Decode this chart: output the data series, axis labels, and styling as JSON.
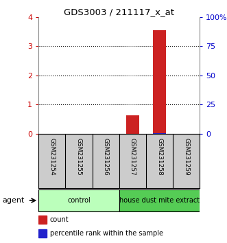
{
  "title": "GDS3003 / 211117_x_at",
  "samples": [
    "GSM231254",
    "GSM231255",
    "GSM231256",
    "GSM231257",
    "GSM231258",
    "GSM231259"
  ],
  "count_values": [
    0,
    0,
    0,
    0.62,
    3.55,
    0
  ],
  "percentile_values": [
    0,
    0,
    0,
    0.08,
    0.38,
    0
  ],
  "left_ylim": [
    0,
    4
  ],
  "right_ylim": [
    0,
    100
  ],
  "left_yticks": [
    0,
    1,
    2,
    3,
    4
  ],
  "right_yticks": [
    0,
    25,
    50,
    75,
    100
  ],
  "right_yticklabels": [
    "0",
    "25",
    "50",
    "75",
    "100%"
  ],
  "left_ycolor": "#cc0000",
  "right_ycolor": "#0000cc",
  "groups": [
    {
      "label": "control",
      "start": 0,
      "end": 2,
      "color": "#bbffbb"
    },
    {
      "label": "house dust mite extract",
      "start": 3,
      "end": 5,
      "color": "#55cc55"
    }
  ],
  "agent_label": "agent",
  "bar_width": 0.5,
  "count_color": "#cc2222",
  "percentile_color": "#2222cc",
  "bg_color": "#ffffff",
  "sample_bg_color": "#cccccc",
  "legend_count_label": "count",
  "legend_percentile_label": "percentile rank within the sample",
  "dotted_lines": [
    1,
    2,
    3
  ],
  "figsize": [
    3.31,
    3.54
  ],
  "dpi": 100
}
